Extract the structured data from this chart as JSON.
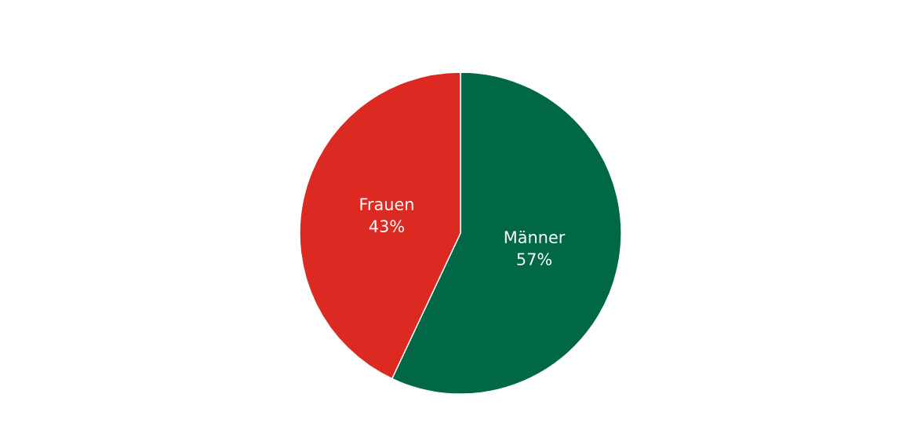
{
  "chart_data": {
    "type": "pie",
    "categories": [
      "Männer",
      "Frauen"
    ],
    "values": [
      57,
      43
    ],
    "value_labels": [
      "57%",
      "43%"
    ],
    "colors": [
      "#006747",
      "#dc2a23"
    ],
    "legend": false
  }
}
